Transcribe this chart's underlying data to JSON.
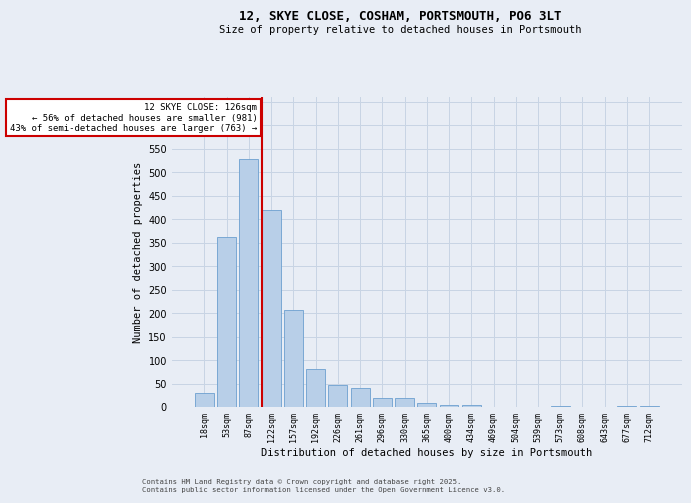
{
  "title_line1": "12, SKYE CLOSE, COSHAM, PORTSMOUTH, PO6 3LT",
  "title_line2": "Size of property relative to detached houses in Portsmouth",
  "xlabel": "Distribution of detached houses by size in Portsmouth",
  "ylabel": "Number of detached properties",
  "categories": [
    "18sqm",
    "53sqm",
    "87sqm",
    "122sqm",
    "157sqm",
    "192sqm",
    "226sqm",
    "261sqm",
    "296sqm",
    "330sqm",
    "365sqm",
    "400sqm",
    "434sqm",
    "469sqm",
    "504sqm",
    "539sqm",
    "573sqm",
    "608sqm",
    "643sqm",
    "677sqm",
    "712sqm"
  ],
  "values": [
    30,
    362,
    527,
    420,
    207,
    80,
    47,
    40,
    20,
    20,
    8,
    5,
    5,
    0,
    0,
    0,
    3,
    0,
    0,
    3,
    3
  ],
  "bar_color": "#b8cfe8",
  "bar_edge_color": "#6ca0d0",
  "grid_color": "#c8d4e4",
  "background_color": "#e8edf5",
  "vline_color": "#cc0000",
  "annotation_text": "12 SKYE CLOSE: 126sqm\n← 56% of detached houses are smaller (981)\n43% of semi-detached houses are larger (763) →",
  "annotation_box_color": "#cc0000",
  "ylim": [
    0,
    660
  ],
  "yticks": [
    0,
    50,
    100,
    150,
    200,
    250,
    300,
    350,
    400,
    450,
    500,
    550,
    600,
    650
  ],
  "vline_bin_index": 3,
  "footer_line1": "Contains HM Land Registry data © Crown copyright and database right 2025.",
  "footer_line2": "Contains public sector information licensed under the Open Government Licence v3.0."
}
